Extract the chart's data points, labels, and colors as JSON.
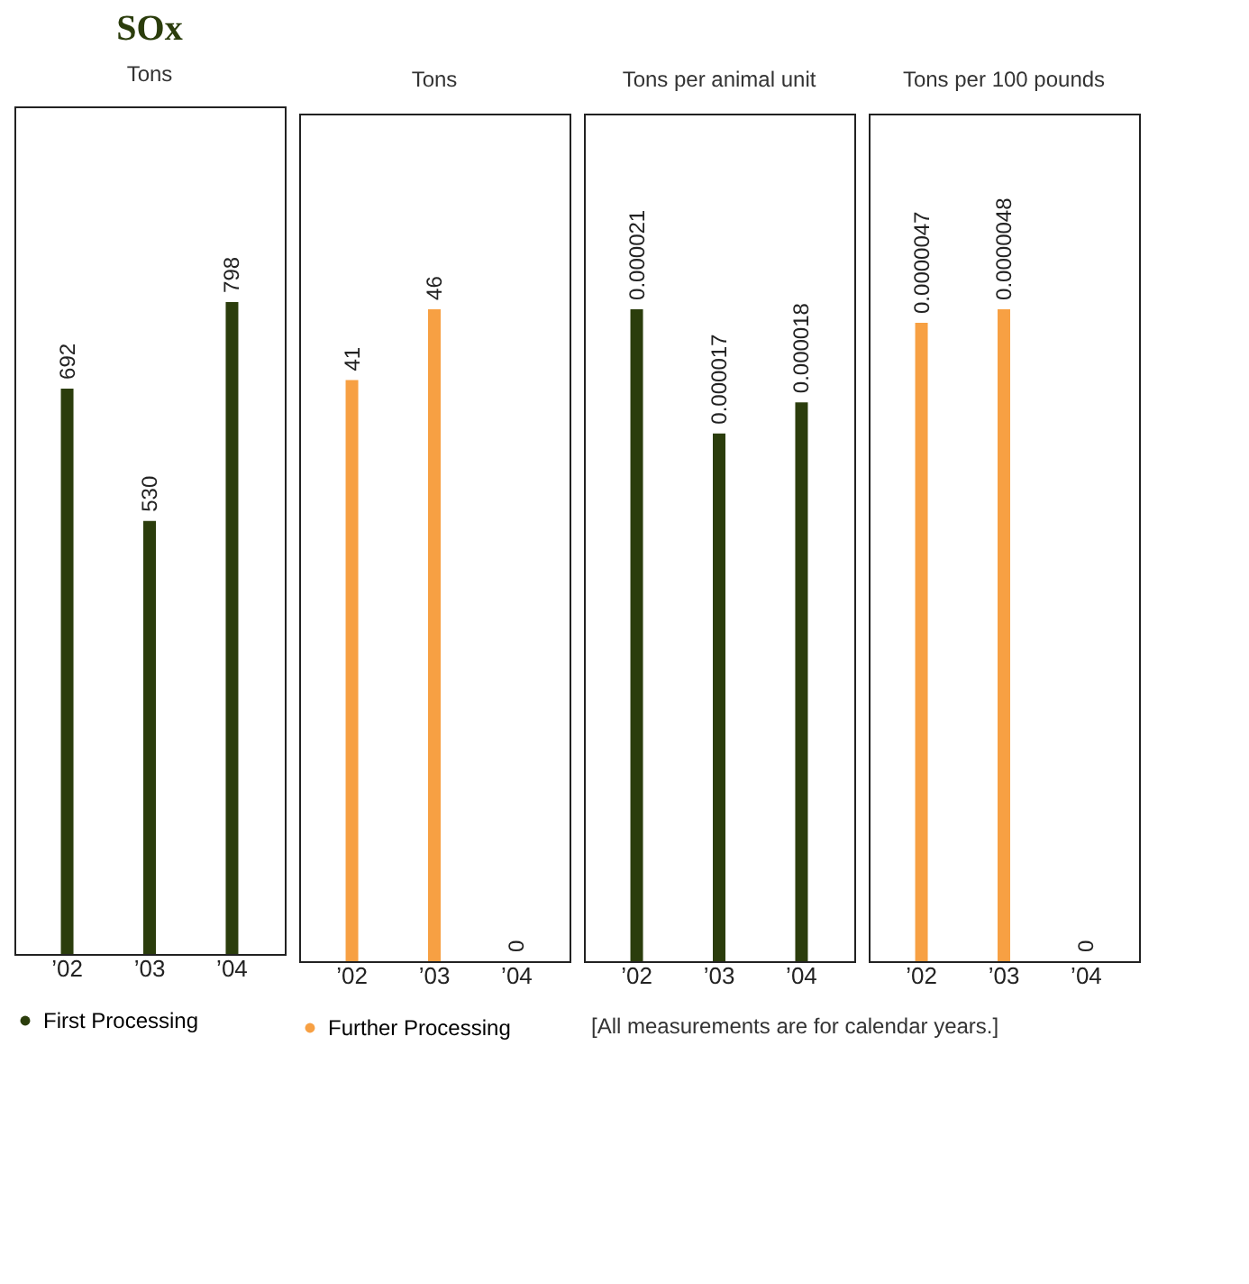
{
  "chart_data": [
    {
      "type": "bar",
      "title": "SOx",
      "subtitle": "Tons",
      "categories": [
        "’02",
        "’03",
        "’04"
      ],
      "series": [
        {
          "name": "First Processing",
          "color": "#2b3d0c",
          "values": [
            692,
            530,
            798
          ]
        }
      ],
      "data_labels": true,
      "tick_labels": "x",
      "grid": false,
      "legend": "bottom"
    },
    {
      "type": "bar",
      "title": "Tons",
      "categories": [
        "’02",
        "’03",
        "’04"
      ],
      "series": [
        {
          "name": "Further Processing",
          "color": "#f7a043",
          "values": [
            41,
            46,
            0
          ]
        }
      ],
      "data_labels": true,
      "tick_labels": "x",
      "grid": false,
      "legend": "bottom"
    },
    {
      "type": "bar",
      "title": "Tons per animal unit",
      "categories": [
        "’02",
        "’03",
        "’04"
      ],
      "series": [
        {
          "color": "#2b3d0c",
          "values": [
            2.1e-05,
            1.7e-05,
            1.8e-05
          ],
          "value_labels": [
            "0.000021",
            "0.000017",
            "0.000018"
          ]
        }
      ],
      "tick_labels": "x",
      "grid": false,
      "annotations": [
        "[All measurements are for calendar years.]"
      ]
    },
    {
      "type": "bar",
      "title": "Tons per 100 pounds",
      "categories": [
        "’02",
        "’03",
        "’04"
      ],
      "series": [
        {
          "color": "#f7a043",
          "values": [
            4.7e-06,
            4.8e-06,
            0
          ],
          "value_labels": [
            "0.0000047",
            "0.0000048",
            "0"
          ]
        }
      ],
      "tick_labels": "x",
      "grid": false
    }
  ]
}
